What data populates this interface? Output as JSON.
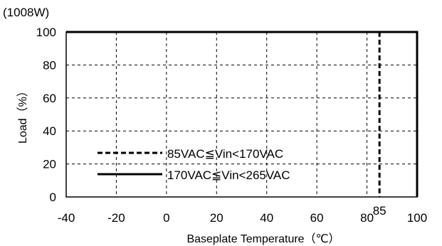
{
  "chart_data": {
    "type": "line",
    "title": "",
    "unit_label": "(1008W)",
    "xlabel": "Baseplate Temperature（℃）",
    "ylabel": "Load（%）",
    "xlim": [
      -40,
      100
    ],
    "ylim": [
      0,
      100
    ],
    "x_ticks": [
      -40,
      -20,
      0,
      20,
      40,
      60,
      80,
      100
    ],
    "y_ticks": [
      0,
      20,
      40,
      60,
      80,
      100
    ],
    "extra_x_tick": 85,
    "grid": true,
    "legend_position": "lower-left",
    "series": [
      {
        "name": "85VAC≦Vin<170VAC",
        "style": "dashed",
        "color": "#000000",
        "points": [
          [
            -40,
            100
          ],
          [
            85,
            100
          ],
          [
            85,
            0
          ]
        ]
      },
      {
        "name": "170VAC≦Vin<265VAC",
        "style": "solid",
        "color": "#000000",
        "points": [
          [
            -40,
            100
          ],
          [
            100,
            100
          ],
          [
            100,
            0
          ]
        ]
      }
    ]
  }
}
